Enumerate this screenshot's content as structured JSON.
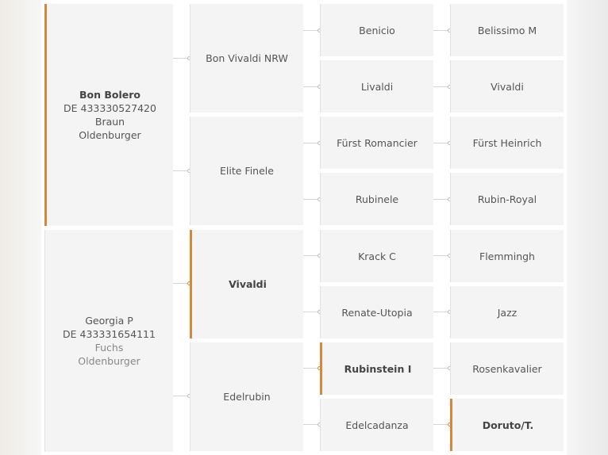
{
  "pedigree": {
    "parents": [
      {
        "name": "Bon Bolero",
        "reg": "DE 433330527420",
        "color": "Braun",
        "breed": "Oldenburger"
      },
      {
        "name": "Georgia P",
        "reg": "DE 433331654111",
        "color": "Fuchs",
        "breed": "Oldenburger"
      }
    ],
    "grandparents": [
      "Bon Vivaldi NRW",
      "Elite Finele",
      "Vivaldi",
      "Edelrubin"
    ],
    "great_grandparents": [
      "Benicio",
      "Livaldi",
      "Fürst Romancier",
      "Rubinele",
      "Krack C",
      "Renate-Utopia",
      "Rubinstein I",
      "Edelcadanza"
    ],
    "great_great_grandparents": [
      "Belissimo M",
      "Vivaldi",
      "Fürst Heinrich",
      "Rubin-Royal",
      "Flemmingh",
      "Jazz",
      "Rosenkavalier",
      "Doruto/T."
    ]
  },
  "accent_color": "#d3883a"
}
